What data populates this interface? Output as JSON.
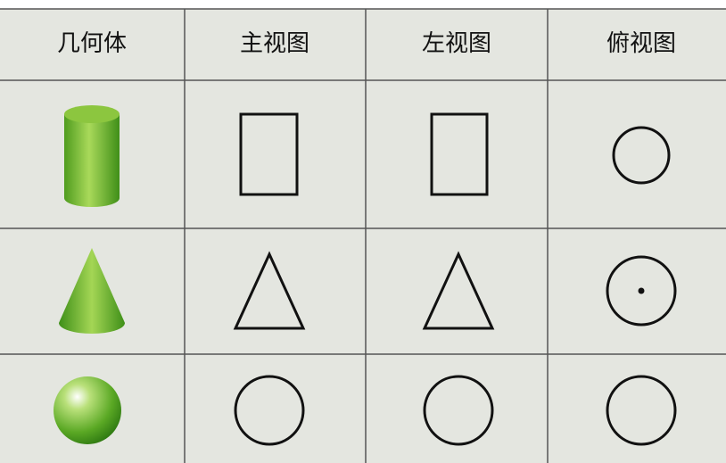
{
  "table": {
    "headers": [
      "几何体",
      "主视图",
      "左视图",
      "俯视图"
    ]
  }
}
